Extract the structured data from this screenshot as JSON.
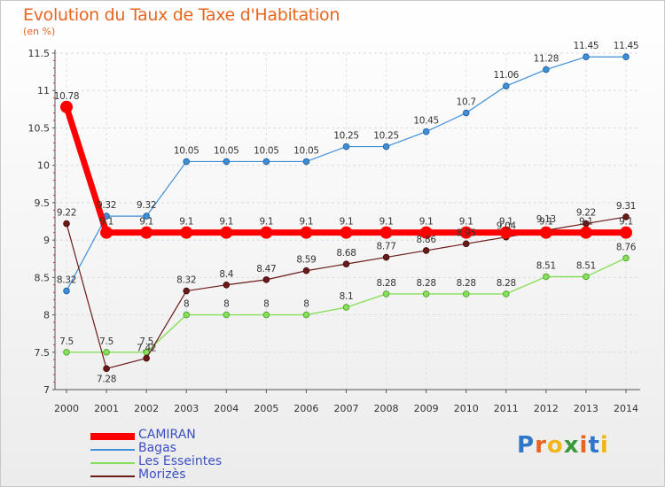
{
  "header": {
    "title": "Evolution du Taux de Taxe d'Habitation",
    "unit": "(en %)"
  },
  "logo": {
    "letters": [
      "P",
      "r",
      "o",
      "x",
      "i",
      "t",
      "i"
    ],
    "colors": [
      "#2e76c9",
      "#e8651f",
      "#f2b51c",
      "#3a9a3a",
      "#e8651f",
      "#2e76c9",
      "#f2b51c"
    ]
  },
  "chart_data": {
    "type": "line",
    "title": "Evolution du Taux de Taxe d'Habitation",
    "ylabel": "(en %)",
    "xlabel": "",
    "x": [
      2000,
      2001,
      2002,
      2003,
      2004,
      2005,
      2006,
      2007,
      2008,
      2009,
      2010,
      2011,
      2012,
      2013,
      2014
    ],
    "ylim": [
      7,
      11.5
    ],
    "yticks": [
      7,
      7.5,
      8,
      8.5,
      9,
      9.5,
      10,
      10.5,
      11,
      11.5
    ],
    "ytick_labels": [
      "7",
      "7.5",
      "8",
      "8.5",
      "9",
      "9.5",
      "10",
      "10.5",
      "11",
      "11.5"
    ],
    "grid": true,
    "legend_position": "bottom-left",
    "series": [
      {
        "name": "CAMIRAN",
        "color": "#ff0000",
        "values": [
          10.78,
          9.1,
          9.1,
          9.1,
          9.1,
          9.1,
          9.1,
          9.1,
          9.1,
          9.1,
          9.1,
          9.1,
          9.1,
          9.1,
          9.1
        ],
        "labels": [
          "10.78",
          "9.1",
          "9.1",
          "9.1",
          "9.1",
          "9.1",
          "9.1",
          "9.1",
          "9.1",
          "9.1",
          "9.1",
          "9.1",
          "9.1",
          "9.1",
          "9.1"
        ]
      },
      {
        "name": "Bagas",
        "color": "#3f8ed8",
        "values": [
          8.32,
          9.32,
          9.32,
          10.05,
          10.05,
          10.05,
          10.05,
          10.25,
          10.25,
          10.45,
          10.7,
          11.06,
          11.28,
          11.45,
          11.45
        ],
        "labels": [
          "8.32",
          "9.32",
          "9.32",
          "10.05",
          "10.05",
          "10.05",
          "10.05",
          "10.25",
          "10.25",
          "10.45",
          "10.7",
          "11.06",
          "11.28",
          "11.45",
          "11.45"
        ]
      },
      {
        "name": "Les Esseintes",
        "color": "#88e05a",
        "values": [
          7.5,
          7.5,
          7.5,
          8,
          8,
          8,
          8,
          8.1,
          8.28,
          8.28,
          8.28,
          8.28,
          8.51,
          8.51,
          8.76
        ],
        "labels": [
          "7.5",
          "7.5",
          "7.5",
          "8",
          "8",
          "8",
          "8",
          "8.1",
          "8.28",
          "8.28",
          "8.28",
          "8.28",
          "8.51",
          "8.51",
          "8.76"
        ]
      },
      {
        "name": "Morizès",
        "color": "#6b1a1a",
        "values": [
          9.22,
          7.28,
          7.42,
          8.32,
          8.4,
          8.47,
          8.59,
          8.68,
          8.77,
          8.86,
          8.95,
          9.04,
          9.13,
          9.22,
          9.31
        ],
        "labels": [
          "9.22",
          "7.28",
          "7.42",
          "8.32",
          "8.4",
          "8.47",
          "8.59",
          "8.68",
          "8.77",
          "8.86",
          "8.95",
          "9.04",
          "9.13",
          "9.22",
          "9.31"
        ]
      }
    ]
  }
}
